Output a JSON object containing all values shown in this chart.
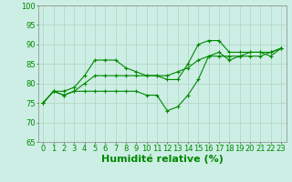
{
  "xlabel": "Humidité relative (%)",
  "xlim": [
    -0.5,
    23.5
  ],
  "ylim": [
    65,
    100
  ],
  "yticks": [
    65,
    70,
    75,
    80,
    85,
    90,
    95,
    100
  ],
  "xticks": [
    0,
    1,
    2,
    3,
    4,
    5,
    6,
    7,
    8,
    9,
    10,
    11,
    12,
    13,
    14,
    15,
    16,
    17,
    18,
    19,
    20,
    21,
    22,
    23
  ],
  "background_color": "#cceee4",
  "grid_color": "#aaccbb",
  "line_color": "#008800",
  "line1": [
    75,
    78,
    78,
    79,
    82,
    86,
    86,
    86,
    84,
    83,
    82,
    82,
    81,
    81,
    85,
    90,
    91,
    91,
    88,
    88,
    88,
    88,
    87,
    89
  ],
  "line2": [
    75,
    78,
    77,
    78,
    80,
    82,
    82,
    82,
    82,
    82,
    82,
    82,
    82,
    83,
    84,
    86,
    87,
    87,
    87,
    87,
    88,
    88,
    88,
    89
  ],
  "line3": [
    75,
    78,
    77,
    78,
    78,
    78,
    78,
    78,
    78,
    78,
    77,
    77,
    73,
    74,
    77,
    81,
    87,
    88,
    86,
    87,
    87,
    87,
    88,
    89
  ],
  "xlabel_fontsize": 8,
  "xlabel_color": "#008800",
  "tick_fontsize": 6,
  "tick_color": "#008800",
  "figwidth": 3.2,
  "figheight": 2.0,
  "dpi": 100
}
